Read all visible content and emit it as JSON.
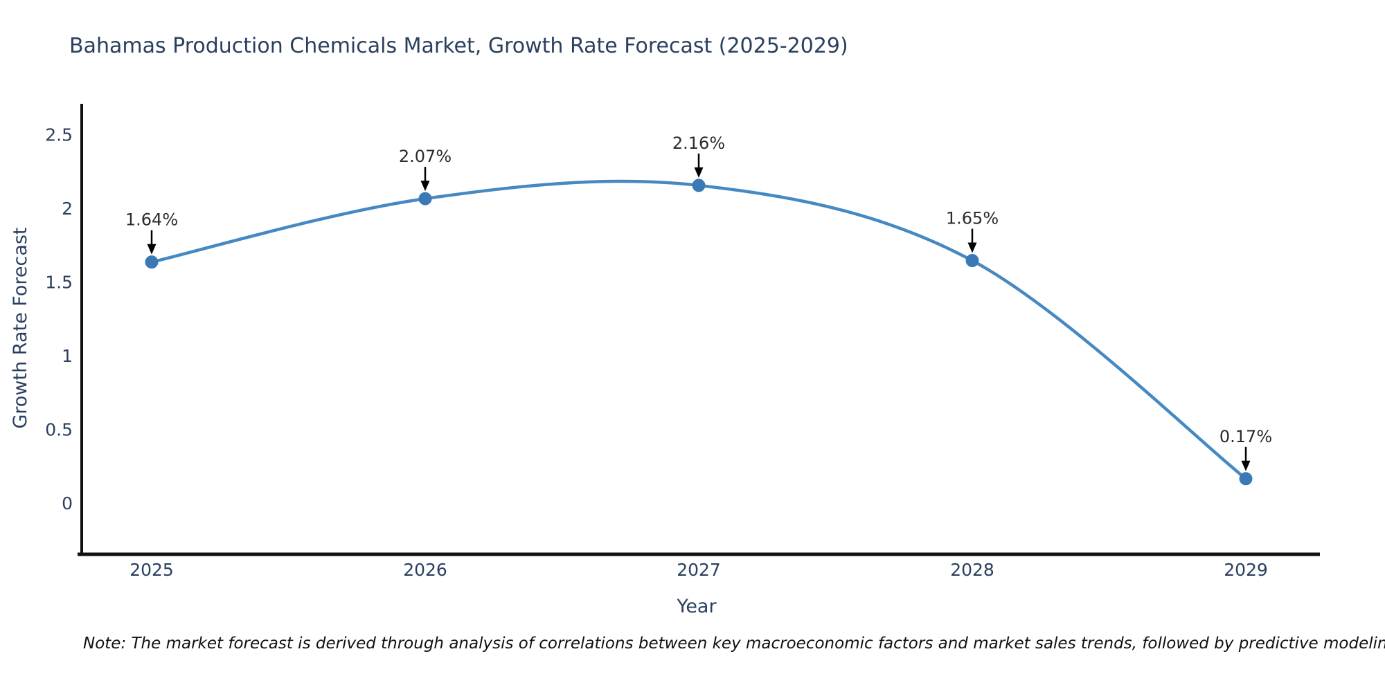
{
  "title": "Bahamas Production Chemicals Market, Growth Rate Forecast (2025-2029)",
  "note": "Note: The market forecast is derived through analysis of correlations between key macroeconomic factors and market sales trends, followed by predictive modeling to project future sales",
  "chart_data": {
    "type": "line",
    "title": "Bahamas Production Chemicals Market, Growth Rate Forecast (2025-2029)",
    "xlabel": "Year",
    "ylabel": "Growth Rate Forecast",
    "categories": [
      "2025",
      "2026",
      "2027",
      "2028",
      "2029"
    ],
    "values": [
      1.64,
      2.07,
      2.16,
      1.65,
      0.17
    ],
    "point_labels": [
      "1.64%",
      "2.07%",
      "2.16%",
      "1.65%",
      "0.17%"
    ],
    "ytick_labels": [
      "2.5",
      "2",
      "1.5",
      "1",
      "0.5",
      "0"
    ],
    "ytick_values": [
      2.5,
      2.0,
      1.5,
      1.0,
      0.5,
      0
    ],
    "ylim": [
      -0.35,
      2.6
    ],
    "line_shape": "spline",
    "grid": false,
    "legend": "none",
    "colors": {
      "line": "#4689c2",
      "marker": "#3a79b5",
      "axis": "#101010",
      "tick_text": "#2a3f5f",
      "title_text": "#2a3f5f",
      "annotation_text": "#2b2b2b",
      "arrow": "#000000",
      "background": "#ffffff"
    }
  }
}
